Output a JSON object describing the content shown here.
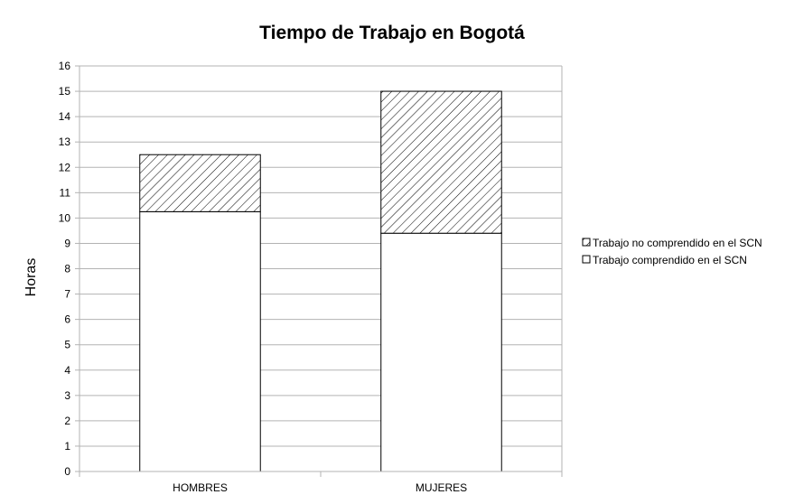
{
  "chart_data": {
    "type": "bar",
    "stacked": true,
    "title": "Tiempo de Trabajo en Bogotá",
    "xlabel": "",
    "ylabel": "Horas",
    "categories": [
      "HOMBRES",
      "MUJERES"
    ],
    "ylim": [
      0,
      16
    ],
    "yticks": [
      0,
      1,
      2,
      3,
      4,
      5,
      6,
      7,
      8,
      9,
      10,
      11,
      12,
      13,
      14,
      15,
      16
    ],
    "grid": true,
    "legend_position": "right",
    "series": [
      {
        "name": "Trabajo comprendido en el SCN",
        "values": [
          10.25,
          9.4
        ],
        "fill": "#ffffff",
        "pattern": "none"
      },
      {
        "name": "Trabajo no comprendido en el SCN",
        "values": [
          2.25,
          5.6
        ],
        "fill": "#ffffff",
        "pattern": "diagonal-hatch"
      }
    ],
    "legend_order": [
      1,
      0
    ],
    "colors": {
      "gridline": "#b3b3b3",
      "bar_stroke": "#000000",
      "hatch": "#000000"
    }
  }
}
